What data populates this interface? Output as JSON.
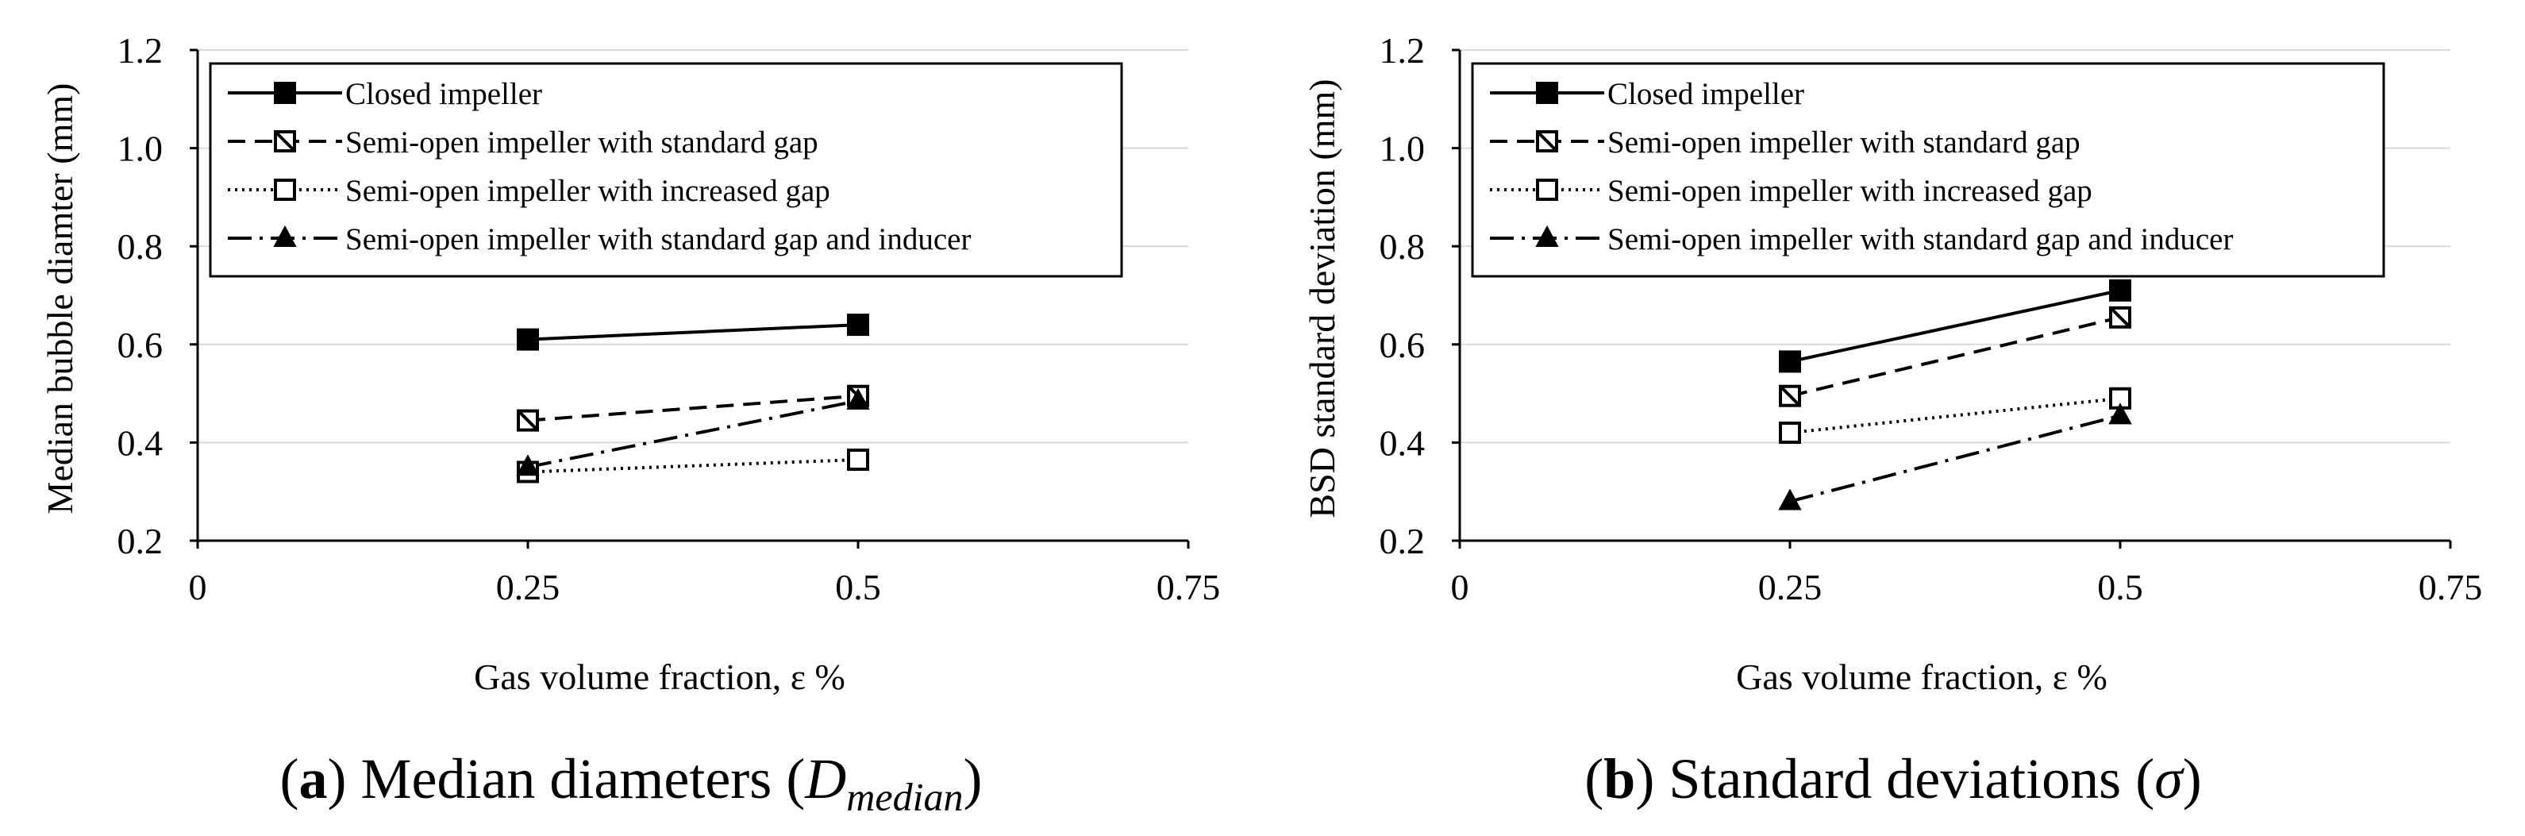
{
  "chart_data": [
    {
      "type": "line",
      "caption": {
        "tag": "a",
        "text": "Median diameters",
        "symbol": "D",
        "symbol_sub": "median"
      },
      "xlabel": "Gas volume fraction, ε %",
      "ylabel": "Median bubble diamter (mm)",
      "xlim": [
        0,
        0.75
      ],
      "ylim": [
        0.2,
        1.2
      ],
      "xticks": [
        0,
        0.25,
        0.5,
        0.75
      ],
      "xtick_labels": [
        "0",
        "0.25",
        "0.5",
        "0.75"
      ],
      "yticks": [
        0.2,
        0.4,
        0.6,
        0.8,
        1.0,
        1.2
      ],
      "ytick_labels": [
        "0.2",
        "0.4",
        "0.6",
        "0.8",
        "1.0",
        "1.2"
      ],
      "grid": "horizontal",
      "legend": "top",
      "x": [
        0.25,
        0.5
      ],
      "series": [
        {
          "name": "Closed impeller",
          "marker": "filled-square",
          "line": "solid",
          "values": [
            0.61,
            0.64
          ]
        },
        {
          "name": "Semi-open impeller with standard gap",
          "marker": "hatched-square",
          "line": "dashed",
          "values": [
            0.445,
            0.495
          ]
        },
        {
          "name": "Semi-open impeller with increased gap",
          "marker": "open-square",
          "line": "dotted",
          "values": [
            0.34,
            0.365
          ]
        },
        {
          "name": "Semi-open impeller with standard gap and inducer",
          "marker": "filled-triangle",
          "line": "dash-dot",
          "values": [
            0.35,
            0.485
          ]
        }
      ]
    },
    {
      "type": "line",
      "caption": {
        "tag": "b",
        "text": "Standard deviations",
        "symbol": "σ",
        "symbol_sub": ""
      },
      "xlabel": "Gas volume fraction, ε %",
      "ylabel": "BSD standard deviation (mm)",
      "xlim": [
        0,
        0.75
      ],
      "ylim": [
        0.2,
        1.2
      ],
      "xticks": [
        0,
        0.25,
        0.5,
        0.75
      ],
      "xtick_labels": [
        "0",
        "0.25",
        "0.5",
        "0.75"
      ],
      "yticks": [
        0.2,
        0.4,
        0.6,
        0.8,
        1.0,
        1.2
      ],
      "ytick_labels": [
        "0.2",
        "0.4",
        "0.6",
        "0.8",
        "1.0",
        "1.2"
      ],
      "grid": "horizontal",
      "legend": "top",
      "x": [
        0.25,
        0.5
      ],
      "series": [
        {
          "name": "Closed impeller",
          "marker": "filled-square",
          "line": "solid",
          "values": [
            0.565,
            0.71
          ]
        },
        {
          "name": "Semi-open impeller with standard gap",
          "marker": "hatched-square",
          "line": "dashed",
          "values": [
            0.495,
            0.655
          ]
        },
        {
          "name": "Semi-open impeller with increased gap",
          "marker": "open-square",
          "line": "dotted",
          "values": [
            0.42,
            0.49
          ]
        },
        {
          "name": "Semi-open impeller with standard gap and inducer",
          "marker": "filled-triangle",
          "line": "dash-dot",
          "values": [
            0.28,
            0.455
          ]
        }
      ]
    }
  ]
}
